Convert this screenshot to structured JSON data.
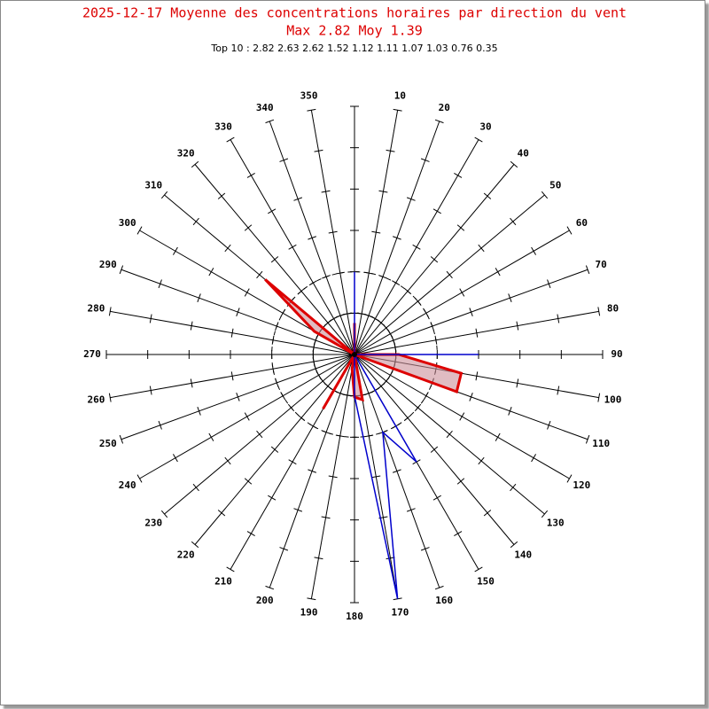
{
  "chart_data": {
    "type": "polar",
    "title": "2025-12-17 Moyenne des concentrations horaires par direction du vent",
    "subtitle": "Max 2.82 Moy 1.39",
    "note": "Top 10 : 2.82 2.63 2.62 1.52 1.12 1.11 1.07 1.03 0.76 0.35",
    "categories": [
      null,
      10,
      20,
      30,
      40,
      50,
      60,
      70,
      80,
      90,
      100,
      110,
      120,
      130,
      140,
      150,
      160,
      170,
      180,
      190,
      200,
      210,
      220,
      230,
      240,
      250,
      260,
      270,
      280,
      290,
      300,
      310,
      320,
      330,
      340,
      350
    ],
    "series": [
      {
        "color": "#dd0000",
        "fill": "#cc8f99",
        "values": [
          0.76,
          0,
          0,
          0,
          0,
          0,
          0,
          0,
          0,
          1.07,
          2.62,
          2.63,
          0,
          0,
          0,
          0,
          0,
          1.11,
          1.03,
          0.35,
          0,
          1.52,
          0,
          0,
          0,
          0,
          0,
          0,
          0,
          0,
          1.12,
          2.82,
          0,
          0,
          0,
          0
        ]
      },
      {
        "color": "#0000cc",
        "values": [
          2,
          0,
          0,
          0,
          0,
          0,
          0,
          0,
          0,
          3,
          0,
          0,
          0,
          0,
          0,
          3,
          2,
          6,
          1,
          0,
          0,
          0,
          0,
          0,
          0,
          0,
          0,
          0,
          0,
          0,
          0,
          0,
          0,
          0,
          0,
          0
        ]
      }
    ],
    "rlim": [
      0,
      6
    ],
    "rticks": [
      1,
      2,
      3,
      4,
      5,
      6
    ],
    "circles": [
      {
        "value": 1,
        "style": "solid"
      },
      {
        "value": 2,
        "style": "dashed"
      }
    ]
  }
}
